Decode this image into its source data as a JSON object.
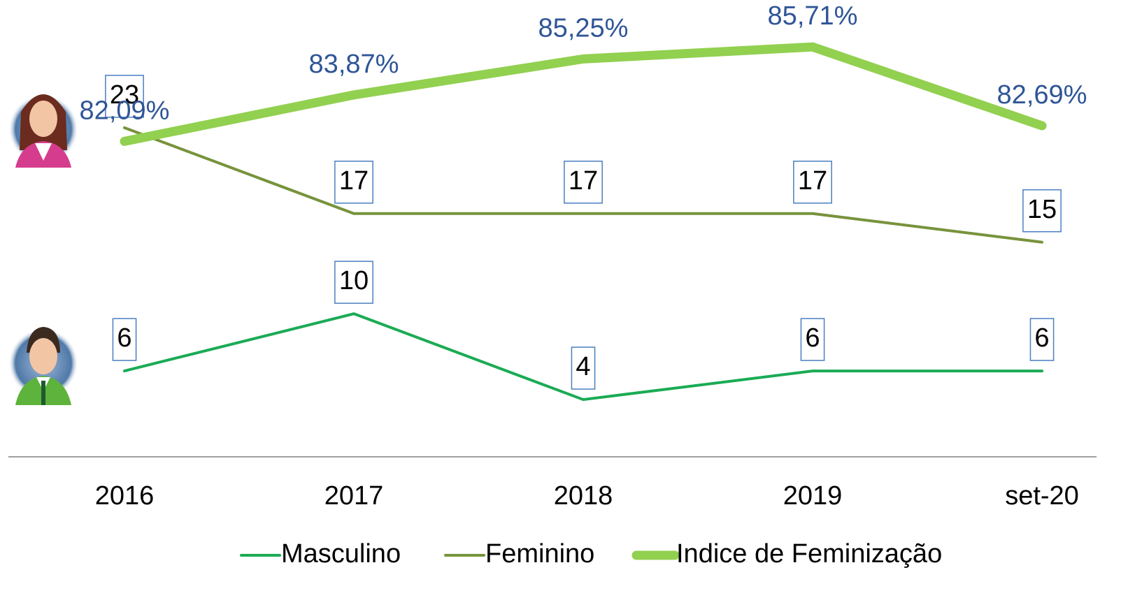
{
  "chart_data": {
    "type": "line",
    "categories": [
      "2016",
      "2017",
      "2018",
      "2019",
      "set-20"
    ],
    "ylim": [
      0,
      31
    ],
    "y2lim": [
      70,
      87
    ],
    "series": [
      {
        "name": "Masculino",
        "color": "#1aab55",
        "values": [
          6,
          10,
          4,
          6,
          6
        ]
      },
      {
        "name": "Feminino",
        "color": "#77933c",
        "values": [
          23,
          17,
          17,
          17,
          15
        ]
      },
      {
        "name": "Indice de Feminização",
        "color": "#92d050",
        "axis": "y2",
        "values": [
          82.09,
          83.87,
          85.25,
          85.71,
          82.69
        ],
        "value_labels": [
          "82,09%",
          "83,87%",
          "85,25%",
          "85,71%",
          "82,69%"
        ]
      }
    ]
  }
}
